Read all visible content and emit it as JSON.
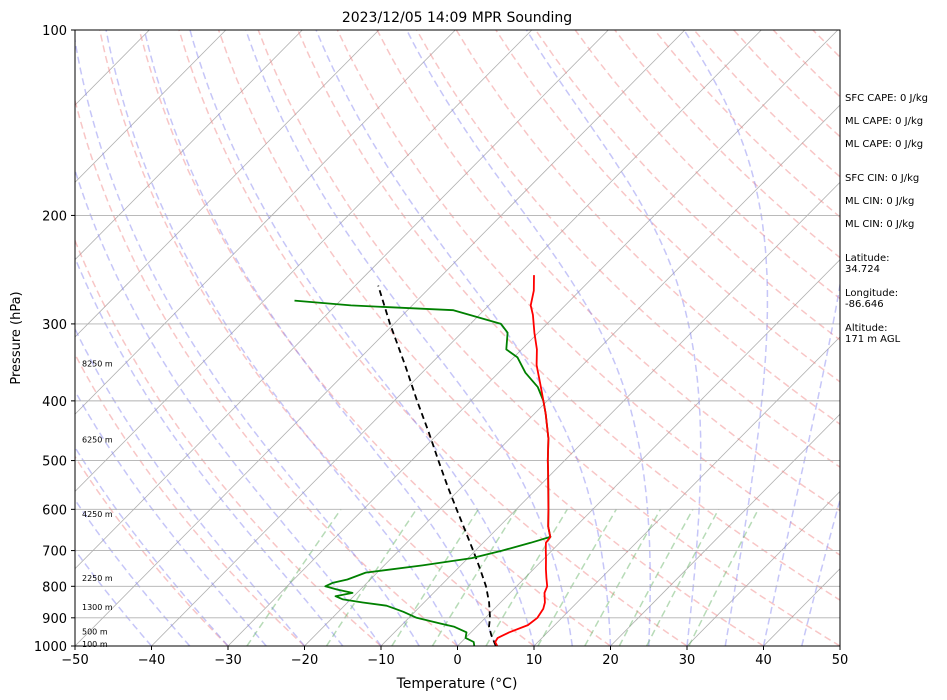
{
  "chart_data": {
    "type": "line",
    "title": "2023/12/05 14:09 MPR Sounding",
    "xlabel": "Temperature (°C)",
    "ylabel": "Pressure (hPa)",
    "xlim": [
      -50,
      50
    ],
    "ylim": [
      1000,
      100
    ],
    "y_scale": "log",
    "skew_t": true,
    "grid": true,
    "x_ticks": [
      -50,
      -40,
      -30,
      -20,
      -10,
      0,
      10,
      20,
      30,
      40,
      50
    ],
    "y_ticks": [
      100,
      200,
      300,
      400,
      500,
      600,
      700,
      800,
      900,
      1000
    ],
    "series": [
      {
        "role": "temperature",
        "color": "#ff0000",
        "points": [
          [
            1000,
            5.2
          ],
          [
            985,
            4.4
          ],
          [
            970,
            4.2
          ],
          [
            950,
            5.0
          ],
          [
            925,
            6.5
          ],
          [
            900,
            6.8
          ],
          [
            870,
            6.4
          ],
          [
            850,
            5.8
          ],
          [
            820,
            4.5
          ],
          [
            800,
            4.0
          ],
          [
            775,
            2.8
          ],
          [
            750,
            1.6
          ],
          [
            720,
            0.2
          ],
          [
            700,
            -0.8
          ],
          [
            680,
            -1.8
          ],
          [
            665,
            -2.0
          ],
          [
            640,
            -3.6
          ],
          [
            600,
            -5.8
          ],
          [
            560,
            -8.2
          ],
          [
            520,
            -10.8
          ],
          [
            500,
            -12.2
          ],
          [
            460,
            -15.0
          ],
          [
            420,
            -18.5
          ],
          [
            400,
            -20.5
          ],
          [
            380,
            -22.6
          ],
          [
            350,
            -26.0
          ],
          [
            330,
            -28.0
          ],
          [
            310,
            -30.5
          ],
          [
            290,
            -33.0
          ],
          [
            280,
            -34.5
          ],
          [
            265,
            -36.0
          ],
          [
            250,
            -38.0
          ]
        ]
      },
      {
        "role": "dewpoint",
        "color": "#008000",
        "points": [
          [
            1000,
            2.2
          ],
          [
            985,
            1.6
          ],
          [
            970,
            0.0
          ],
          [
            950,
            -0.6
          ],
          [
            930,
            -3.0
          ],
          [
            920,
            -5.0
          ],
          [
            900,
            -9.0
          ],
          [
            880,
            -11.5
          ],
          [
            870,
            -13.0
          ],
          [
            860,
            -14.5
          ],
          [
            850,
            -18.0
          ],
          [
            840,
            -21.0
          ],
          [
            830,
            -22.4
          ],
          [
            820,
            -20.6
          ],
          [
            810,
            -23.0
          ],
          [
            800,
            -25.0
          ],
          [
            790,
            -24.5
          ],
          [
            780,
            -23.0
          ],
          [
            760,
            -21.5
          ],
          [
            740,
            -15.0
          ],
          [
            720,
            -9.5
          ],
          [
            700,
            -6.5
          ],
          [
            680,
            -3.8
          ],
          [
            665,
            -2.0
          ],
          [
            640,
            -3.6
          ],
          [
            600,
            -5.8
          ],
          [
            560,
            -8.2
          ],
          [
            520,
            -10.8
          ],
          [
            500,
            -12.2
          ],
          [
            460,
            -15.0
          ],
          [
            420,
            -18.5
          ],
          [
            400,
            -20.5
          ],
          [
            380,
            -23.0
          ],
          [
            360,
            -26.5
          ],
          [
            340,
            -29.5
          ],
          [
            330,
            -32.0
          ],
          [
            310,
            -34.0
          ],
          [
            300,
            -36.0
          ],
          [
            285,
            -44.0
          ],
          [
            280,
            -58.0
          ],
          [
            275,
            -66.0
          ]
        ]
      },
      {
        "role": "parcel",
        "color": "#000000",
        "points": [
          [
            1000,
            5.0
          ],
          [
            960,
            3.0
          ],
          [
            930,
            1.6
          ],
          [
            900,
            0.6
          ],
          [
            850,
            -1.5
          ],
          [
            800,
            -4.0
          ],
          [
            750,
            -7.0
          ],
          [
            700,
            -10.3
          ],
          [
            650,
            -13.9
          ],
          [
            600,
            -17.8
          ],
          [
            550,
            -22.0
          ],
          [
            500,
            -26.5
          ],
          [
            450,
            -31.4
          ],
          [
            400,
            -37.0
          ],
          [
            350,
            -43.2
          ],
          [
            300,
            -50.5
          ],
          [
            260,
            -57.0
          ]
        ]
      }
    ],
    "height_labels": [
      {
        "text": "100 m",
        "pressure": 993
      },
      {
        "text": "500 m",
        "pressure": 947
      },
      {
        "text": "1300 m",
        "pressure": 865
      },
      {
        "text": "2250 m",
        "pressure": 776
      },
      {
        "text": "4250 m",
        "pressure": 610
      },
      {
        "text": "6250 m",
        "pressure": 462
      },
      {
        "text": "8250 m",
        "pressure": 348
      }
    ],
    "colors": {
      "isotherm": "#b0b0b0",
      "dry_adiabat": "#f08080",
      "moist_adiabat": "#8080f0",
      "mixing_ratio": "#60b060"
    }
  },
  "stats": [
    "SFC CAPE: 0 J/kg",
    "ML CAPE: 0 J/kg",
    "ML CAPE: 0 J/kg",
    "SFC CIN: 0 J/kg",
    "ML CIN: 0 J/kg",
    "ML CIN: 0 J/kg",
    "Latitude:\n34.724",
    "Longitude:\n-86.646",
    "Altitude:\n171 m AGL"
  ]
}
